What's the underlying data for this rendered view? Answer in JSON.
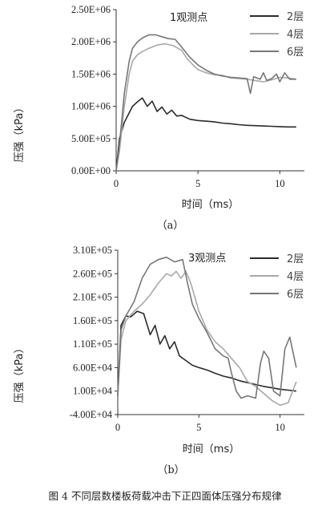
{
  "figure": {
    "caption": "图 4 不同层数楼板荷载冲击下正四面体压强分布规律"
  },
  "chart_data": [
    {
      "type": "line",
      "sub_label": "（a）",
      "title": "1观测点",
      "xlabel": "时间（ms）",
      "ylabel": "压强（kPa）",
      "xlim": [
        0,
        11.5
      ],
      "ylim": [
        0,
        2500000
      ],
      "x_ticks": [
        0,
        5,
        10
      ],
      "x_tick_labels": [
        "0",
        "5",
        "10"
      ],
      "y_ticks": [
        0,
        500000,
        1000000,
        1500000,
        2000000,
        2500000
      ],
      "y_tick_labels": [
        "0.00E+00",
        "5.00E+05",
        "1.00E+06",
        "1.50E+06",
        "2.00E+06",
        "2.50E+06"
      ],
      "legend_position": "top-right",
      "grid": false,
      "series": [
        {
          "name": "2层",
          "color": "#2b2b2b",
          "x": [
            0,
            0.2,
            0.5,
            0.8,
            1.0,
            1.3,
            1.6,
            1.9,
            2.2,
            2.5,
            2.8,
            3.1,
            3.4,
            3.7,
            4.0,
            4.5,
            5.0,
            5.5,
            6.0,
            6.5,
            7.0,
            7.5,
            8.0,
            8.5,
            9.0,
            9.5,
            10.0,
            10.5,
            11.0
          ],
          "y": [
            0,
            500000,
            750000,
            900000,
            1000000,
            1070000,
            1130000,
            1000000,
            1080000,
            920000,
            990000,
            880000,
            940000,
            850000,
            860000,
            800000,
            780000,
            770000,
            760000,
            740000,
            730000,
            715000,
            705000,
            700000,
            695000,
            690000,
            685000,
            680000,
            680000
          ]
        },
        {
          "name": "4层",
          "color": "#a8a8a8",
          "x": [
            0,
            0.2,
            0.5,
            0.8,
            1.0,
            1.3,
            1.6,
            2.0,
            2.5,
            3.0,
            3.5,
            4.0,
            4.3,
            4.7,
            5.0,
            5.5,
            6.0,
            6.5,
            7.0,
            7.5,
            8.0,
            8.5,
            9.0,
            9.5,
            10.0,
            10.5,
            11.0
          ],
          "y": [
            0,
            300000,
            1000000,
            1500000,
            1700000,
            1800000,
            1850000,
            1900000,
            1950000,
            1970000,
            1940000,
            1870000,
            1750000,
            1640000,
            1570000,
            1520000,
            1490000,
            1480000,
            1440000,
            1430000,
            1420000,
            1400000,
            1380000,
            1410000,
            1450000,
            1440000,
            1420000
          ]
        },
        {
          "name": "6层",
          "color": "#777777",
          "x": [
            0,
            0.2,
            0.5,
            0.8,
            1.0,
            1.3,
            1.6,
            2.0,
            2.4,
            2.8,
            3.2,
            3.6,
            4.0,
            4.5,
            5.0,
            5.5,
            6.0,
            6.5,
            7.0,
            7.5,
            8.0,
            8.2,
            8.4,
            8.6,
            8.8,
            9.0,
            9.2,
            9.5,
            9.8,
            10.0,
            10.3,
            10.6,
            11.0
          ],
          "y": [
            0,
            400000,
            1200000,
            1700000,
            1900000,
            2000000,
            2060000,
            2110000,
            2110000,
            2080000,
            2050000,
            2040000,
            1920000,
            1760000,
            1640000,
            1560000,
            1500000,
            1470000,
            1450000,
            1440000,
            1430000,
            1200000,
            1460000,
            1440000,
            1420000,
            1520000,
            1400000,
            1430000,
            1500000,
            1380000,
            1520000,
            1420000,
            1420000
          ]
        }
      ]
    },
    {
      "type": "line",
      "sub_label": "（b）",
      "title": "3观测点",
      "xlabel": "时间（ms）",
      "ylabel": "压强（kPa）",
      "xlim": [
        0,
        11.5
      ],
      "ylim": [
        -40000,
        310000
      ],
      "x_ticks": [
        0,
        5,
        10
      ],
      "x_tick_labels": [
        "0",
        "5",
        "10"
      ],
      "y_ticks": [
        -40000,
        10000,
        60000,
        110000,
        160000,
        210000,
        260000,
        310000
      ],
      "y_tick_labels": [
        "-4.00E+04",
        "1.00E+04",
        "6.00E+04",
        "1.10E+05",
        "1.60E+05",
        "2.10E+05",
        "2.60E+05",
        "3.10E+05"
      ],
      "legend_position": "top-right",
      "grid": false,
      "series": [
        {
          "name": "2层",
          "color": "#2b2b2b",
          "x": [
            0,
            0.2,
            0.5,
            0.8,
            1.2,
            1.6,
            2.0,
            2.3,
            2.6,
            2.9,
            3.2,
            3.5,
            3.8,
            4.2,
            4.6,
            5.0,
            5.5,
            6.0,
            6.5,
            7.0,
            7.5,
            8.0,
            8.5,
            9.0,
            9.5,
            10.0,
            10.5,
            11.0
          ],
          "y": [
            0,
            150000,
            170000,
            168000,
            180000,
            175000,
            130000,
            150000,
            110000,
            128000,
            100000,
            115000,
            85000,
            75000,
            65000,
            60000,
            55000,
            48000,
            42000,
            38000,
            32000,
            28000,
            24000,
            20000,
            17000,
            14000,
            12000,
            10000
          ]
        },
        {
          "name": "4层",
          "color": "#a8a8a8",
          "x": [
            0,
            0.2,
            0.5,
            1.0,
            1.5,
            2.0,
            2.5,
            3.0,
            3.3,
            3.6,
            3.9,
            4.2,
            4.5,
            5.0,
            5.5,
            6.0,
            6.5,
            7.0,
            7.5,
            8.0,
            8.5,
            9.0,
            9.5,
            10.0,
            10.5,
            11.0
          ],
          "y": [
            0,
            120000,
            160000,
            180000,
            195000,
            215000,
            240000,
            260000,
            255000,
            265000,
            250000,
            265000,
            240000,
            180000,
            140000,
            115000,
            100000,
            80000,
            60000,
            30000,
            20000,
            5000,
            -10000,
            -20000,
            -15000,
            30000
          ]
        },
        {
          "name": "6层",
          "color": "#777777",
          "x": [
            0,
            0.2,
            0.5,
            1.0,
            1.5,
            2.0,
            2.5,
            3.0,
            3.5,
            4.0,
            4.3,
            4.6,
            5.0,
            5.5,
            6.0,
            6.5,
            6.8,
            7.0,
            7.3,
            7.6,
            8.0,
            8.5,
            8.8,
            9.0,
            9.3,
            9.6,
            10.0,
            10.3,
            10.6,
            11.0
          ],
          "y": [
            0,
            140000,
            170000,
            200000,
            250000,
            280000,
            290000,
            295000,
            285000,
            290000,
            240000,
            195000,
            165000,
            135000,
            100000,
            85000,
            80000,
            50000,
            10000,
            -5000,
            0,
            -5000,
            70000,
            95000,
            80000,
            10000,
            0,
            100000,
            125000,
            60000
          ]
        }
      ]
    }
  ]
}
